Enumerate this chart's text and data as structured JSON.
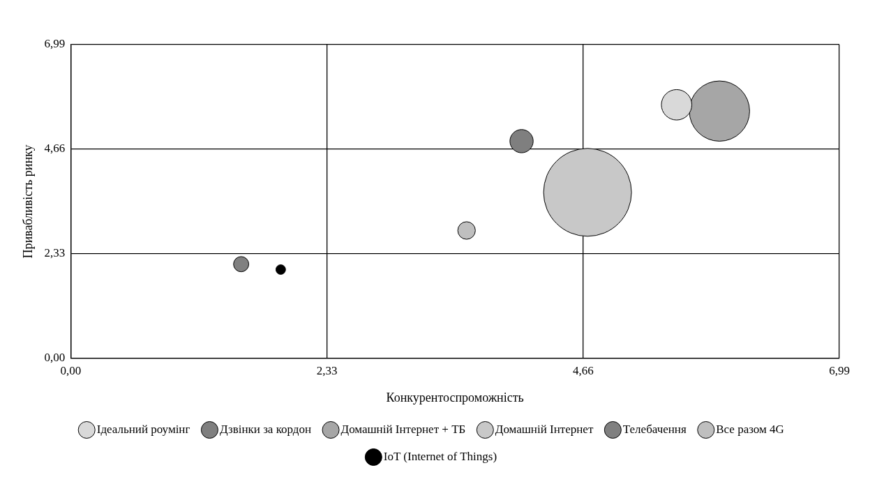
{
  "chart_data": {
    "type": "bubble",
    "xlabel": "Конкурентоспроможність",
    "ylabel": "Привабливість ринку",
    "xlim": [
      0,
      6.99
    ],
    "ylim": [
      0,
      6.99
    ],
    "xticks": [
      {
        "value": 0,
        "label": "0,00"
      },
      {
        "value": 2.33,
        "label": "2,33"
      },
      {
        "value": 4.66,
        "label": "4,66"
      },
      {
        "value": 6.99,
        "label": "6,99"
      }
    ],
    "yticks": [
      {
        "value": 0,
        "label": "0,00"
      },
      {
        "value": 2.33,
        "label": "2,33"
      },
      {
        "value": 4.66,
        "label": "4,66"
      },
      {
        "value": 6.99,
        "label": "6,99"
      }
    ],
    "grid": true,
    "legend": "bottom",
    "series": [
      {
        "name": "Ідеальний роумінг",
        "color": "#d9d9d9",
        "x": [
          5.51
        ],
        "values": [
          5.65
        ],
        "sizes": [
          0.12
        ]
      },
      {
        "name": "Дзвінки за кордон",
        "color": "#7f7f7f",
        "x": [
          4.1
        ],
        "values": [
          4.84
        ],
        "sizes": [
          0.07
        ]
      },
      {
        "name": "Домашній Інтернет + ТБ",
        "color": "#a6a6a6",
        "x": [
          5.9
        ],
        "values": [
          5.51
        ],
        "sizes": [
          0.47
        ]
      },
      {
        "name": "Домашній Інтернет",
        "color": "#c8c8c8",
        "x": [
          4.7
        ],
        "values": [
          3.7
        ],
        "sizes": [
          1
        ]
      },
      {
        "name": "Телебачення",
        "color": "#808080",
        "x": [
          1.55
        ],
        "values": [
          2.1
        ],
        "sizes": [
          0.03
        ]
      },
      {
        "name": "Все разом 4G",
        "color": "#bfbfbf",
        "x": [
          3.6
        ],
        "values": [
          2.85
        ],
        "sizes": [
          0.04
        ]
      },
      {
        "name": "IoT (Internet of Things)",
        "color": "#000000",
        "x": [
          1.91
        ],
        "values": [
          1.98
        ],
        "sizes": [
          0.012
        ]
      }
    ]
  }
}
